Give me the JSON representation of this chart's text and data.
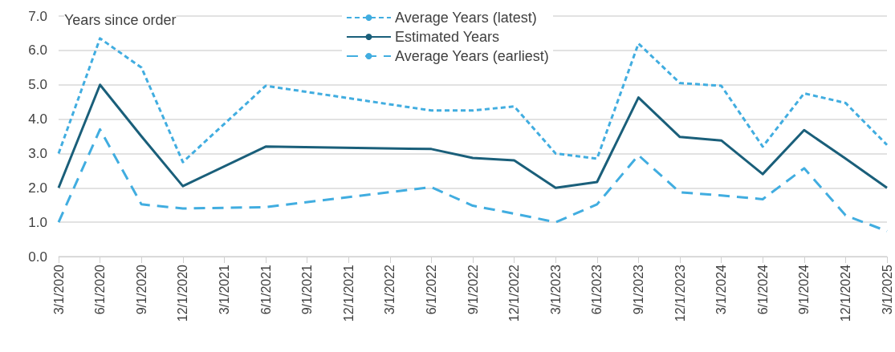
{
  "chart_data": {
    "type": "line",
    "ylabel": "Years since order",
    "categories": [
      "3/1/2020",
      "6/1/2020",
      "9/1/2020",
      "12/1/2020",
      "3/1/2021",
      "6/1/2021",
      "9/1/2021",
      "12/1/2021",
      "3/1/2022",
      "6/1/2022",
      "9/1/2022",
      "12/1/2022",
      "3/1/2023",
      "6/1/2023",
      "9/1/2023",
      "12/1/2023",
      "3/1/2024",
      "6/1/2024",
      "9/1/2024",
      "12/1/2024",
      "3/1/2025"
    ],
    "series": [
      {
        "name": "Average Years (latest)",
        "color": "#41ade0",
        "line_style": "dotted",
        "values": [
          3.0,
          6.35,
          5.5,
          2.75,
          null,
          4.97,
          null,
          null,
          null,
          4.25,
          4.25,
          4.37,
          3.0,
          2.85,
          6.2,
          5.05,
          4.97,
          3.2,
          4.75,
          4.47,
          3.25
        ]
      },
      {
        "name": "Estimated Years",
        "color": "#1a5f7a",
        "line_style": "solid",
        "values": [
          2.0,
          5.0,
          3.5,
          2.05,
          null,
          3.2,
          null,
          null,
          null,
          3.13,
          2.87,
          2.8,
          2.0,
          2.17,
          4.63,
          3.48,
          3.38,
          2.4,
          3.68,
          2.85,
          2.0
        ]
      },
      {
        "name": "Average Years (earliest)",
        "color": "#41ade0",
        "line_style": "dashed",
        "values": [
          1.0,
          3.7,
          1.52,
          1.4,
          null,
          1.44,
          null,
          null,
          null,
          2.02,
          1.48,
          1.25,
          1.0,
          1.52,
          2.95,
          1.87,
          1.78,
          1.67,
          2.57,
          1.2,
          0.74
        ]
      }
    ],
    "ylim": [
      0,
      7
    ],
    "yticks": [
      {
        "value": 0,
        "label": "0.0"
      },
      {
        "value": 1,
        "label": "1.0"
      },
      {
        "value": 2,
        "label": "2.0"
      },
      {
        "value": 3,
        "label": "3.0"
      },
      {
        "value": 4,
        "label": "4.0"
      },
      {
        "value": 5,
        "label": "5.0"
      },
      {
        "value": 6,
        "label": "6.0"
      },
      {
        "value": 7,
        "label": "7.0"
      }
    ],
    "grid": "y",
    "legend": "top",
    "marker": "none"
  }
}
